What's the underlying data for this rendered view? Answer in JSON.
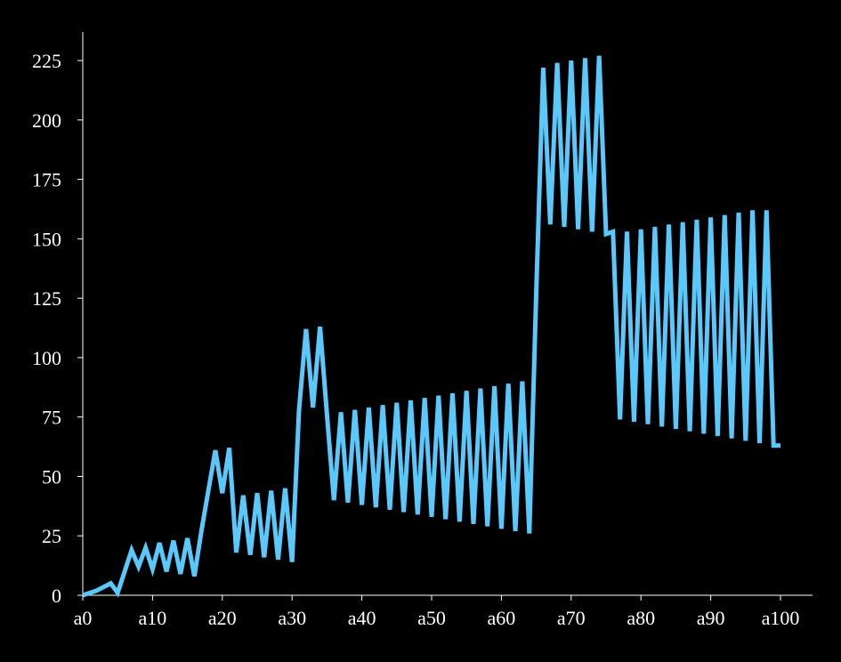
{
  "chart_data": {
    "type": "line",
    "title": "",
    "xlabel": "",
    "ylabel": "",
    "ylim": [
      0,
      237
    ],
    "xlim": [
      0,
      100
    ],
    "grid": false,
    "line_color": "#5ac8fa",
    "background": "#000000",
    "y_ticks": [
      0,
      25,
      50,
      75,
      100,
      125,
      150,
      175,
      200,
      225
    ],
    "x_ticks": [
      {
        "x": 0,
        "label": "a0"
      },
      {
        "x": 10,
        "label": "a10"
      },
      {
        "x": 20,
        "label": "a20"
      },
      {
        "x": 30,
        "label": "a30"
      },
      {
        "x": 40,
        "label": "a40"
      },
      {
        "x": 50,
        "label": "a50"
      },
      {
        "x": 60,
        "label": "a60"
      },
      {
        "x": 70,
        "label": "a70"
      },
      {
        "x": 80,
        "label": "a80"
      },
      {
        "x": 90,
        "label": "a90"
      },
      {
        "x": 100,
        "label": "a100"
      }
    ],
    "series": [
      {
        "x": [
          0,
          2,
          4,
          5,
          7,
          8,
          9,
          10,
          11,
          12,
          13,
          14,
          15,
          16,
          17,
          18,
          19,
          20,
          21,
          22,
          23,
          24,
          25,
          26,
          27,
          28,
          29,
          30,
          31,
          32,
          33,
          34,
          35,
          36,
          37,
          38,
          39,
          40,
          41,
          42,
          43,
          44,
          45,
          46,
          47,
          48,
          49,
          50,
          51,
          52,
          53,
          54,
          55,
          56,
          57,
          58,
          59,
          60,
          61,
          62,
          63,
          64,
          65,
          66,
          67,
          68,
          69,
          70,
          71,
          72,
          73,
          74,
          75,
          76,
          77,
          78,
          79,
          80,
          81,
          82,
          83,
          84,
          85,
          86,
          87,
          88,
          89,
          90,
          91,
          92,
          93,
          94,
          95,
          96,
          97,
          98,
          99,
          100
        ],
        "y": [
          0,
          2,
          5,
          1,
          19,
          12,
          20,
          11,
          22,
          10,
          23,
          9,
          24,
          8,
          27,
          44,
          61,
          43,
          62,
          18,
          42,
          17,
          43,
          16,
          44,
          15,
          45,
          14,
          78,
          112,
          79,
          113,
          76,
          40,
          77,
          39,
          78,
          38,
          79,
          37,
          80,
          36,
          81,
          35,
          82,
          34,
          83,
          33,
          84,
          32,
          85,
          31,
          86,
          30,
          87,
          29,
          88,
          28,
          89,
          27,
          90,
          26,
          128,
          222,
          156,
          224,
          155,
          225,
          154,
          226,
          153,
          227,
          152,
          153,
          74,
          153,
          73,
          154,
          72,
          155,
          71,
          156,
          70,
          157,
          69,
          158,
          68,
          159,
          67,
          160,
          66,
          161,
          65,
          162,
          64,
          162,
          63,
          63
        ]
      }
    ]
  }
}
